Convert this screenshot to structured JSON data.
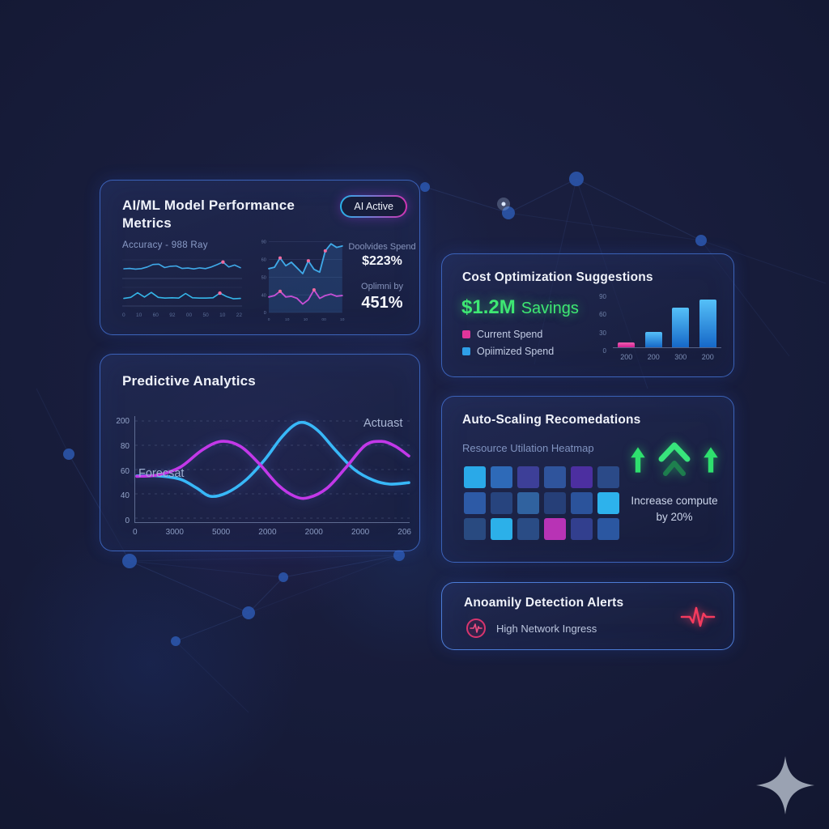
{
  "background": {
    "base_color": "#161b38",
    "node_color": "#2b55aa",
    "edge_color": "rgba(86,125,210,0.16)"
  },
  "cards": {
    "model_metrics": {
      "title": "AI/ML Model Performance Metrics",
      "badge": "AI Active",
      "chart_label": "Accuracy - 988 Ray",
      "stat1_label": "Doolvides Spend",
      "stat1_value": "$223%",
      "stat2_label": "Oplimni by",
      "stat2_value": "451%"
    },
    "predictive": {
      "title": "Predictive Analytics",
      "label_actual": "Actuast",
      "label_forecast": "Forecsat"
    },
    "cost": {
      "title": "Cost Optimization Suggestions",
      "savings_value": "$1.2M",
      "savings_word": "Savings",
      "accent_green": "#3ee873",
      "legend": [
        {
          "label": "Current Spend",
          "color": "#e0359b"
        },
        {
          "label": "Opiimized Spend",
          "color": "#2e9fe8"
        }
      ]
    },
    "autoscale": {
      "title": "Auto-Scaling Recomedations",
      "subtitle": "Resource Utilation Heatmap",
      "recommendation_line1": "Increase compute",
      "recommendation_line2": "by 20%",
      "arrow_color": "#2ee06e"
    },
    "anomaly": {
      "title": "Anoamily Detection Alerts",
      "alert_text": "High Network Ingress",
      "alert_color": "#f53b5e"
    }
  },
  "chart_data": [
    {
      "id": "accuracy_sparklines",
      "type": "line",
      "title": "Accuracy - 988 Ray",
      "marker_color": "#ef6aa0",
      "series": [
        {
          "name": "top-sparkline",
          "color": "#3fa9e8",
          "values": [
            50,
            52,
            48,
            51,
            60,
            74,
            76,
            57,
            64,
            66,
            52,
            54,
            49,
            55,
            51,
            60,
            73,
            88,
            60,
            71,
            56
          ],
          "marker_index": 17
        },
        {
          "name": "bottom-sparkline",
          "color": "#35b5e8",
          "values": [
            38,
            44,
            70,
            46,
            72,
            44,
            40,
            42,
            40,
            66,
            42,
            40,
            40,
            42,
            68,
            48,
            36,
            38
          ],
          "marker_index": 14
        }
      ],
      "xticks": [
        "0",
        "10",
        "60",
        "92",
        "00",
        "50",
        "10",
        "22"
      ]
    },
    {
      "id": "model_trend",
      "type": "line",
      "marker_color": "#ef6aa0",
      "yticks": [
        "90",
        "60",
        "50",
        "40",
        "0"
      ],
      "xticks": [
        "0",
        "10",
        "10",
        "00",
        "10"
      ],
      "series": [
        {
          "name": "blue-trend",
          "color": "#3fa9e8",
          "fill": "rgba(60,140,220,0.20)",
          "values": [
            62,
            64,
            77,
            66,
            71,
            63,
            55,
            73,
            61,
            57,
            87,
            97,
            92,
            94
          ],
          "markers": [
            2,
            7,
            10
          ]
        },
        {
          "name": "magenta-trend",
          "color": "#c44fd4",
          "values": [
            22,
            24,
            30,
            22,
            23,
            20,
            12,
            18,
            32,
            20,
            24,
            26,
            23,
            24
          ],
          "markers": [
            2,
            8
          ]
        }
      ]
    },
    {
      "id": "predictive_forecast",
      "type": "line",
      "title": "Predictive Analytics",
      "ylim": [
        0,
        200
      ],
      "yticks": [
        "200",
        "80",
        "60",
        "40",
        "0"
      ],
      "xticks": [
        "0",
        "3000",
        "5000",
        "2000",
        "2000",
        "2000",
        "206"
      ],
      "grid": "dashed-horizontal",
      "series": [
        {
          "name": "Actuast",
          "color": "#38b8f8",
          "x": [
            0,
            8,
            16,
            22,
            27,
            33,
            40,
            47,
            53,
            58,
            62,
            67,
            73,
            80,
            87,
            93,
            100
          ],
          "y": [
            87,
            87,
            80,
            62,
            45,
            52,
            78,
            120,
            165,
            192,
            196,
            178,
            140,
            100,
            78,
            70,
            73
          ]
        },
        {
          "name": "Forecsat",
          "color": "#c238e8",
          "x": [
            0,
            8,
            16,
            24,
            31,
            38,
            45,
            52,
            58,
            63,
            70,
            77,
            84,
            90,
            95,
            100
          ],
          "y": [
            86,
            89,
            105,
            140,
            158,
            148,
            112,
            68,
            45,
            42,
            62,
            105,
            150,
            158,
            148,
            128
          ]
        }
      ]
    },
    {
      "id": "cost_bars",
      "type": "bar",
      "categories": [
        "200",
        "200",
        "300",
        "200"
      ],
      "ylim": [
        0,
        95
      ],
      "yticks": [
        "90",
        "60",
        "30",
        "0"
      ],
      "bars": [
        {
          "value": 9,
          "top": "#ef5fb0",
          "bottom": "#d01f92"
        },
        {
          "value": 29,
          "top": "#55c0f8",
          "bottom": "#1668c8"
        },
        {
          "value": 75,
          "top": "#55c0f8",
          "bottom": "#1668c8"
        },
        {
          "value": 90,
          "top": "#55c0f8",
          "bottom": "#1668c8"
        }
      ]
    },
    {
      "id": "utilization_heatmap",
      "type": "heatmap",
      "rows": 3,
      "cols": 6,
      "colors": [
        [
          "#2aa9e8",
          "#2e6ab8",
          "#3d3f98",
          "#2f549c",
          "#4c2fa0",
          "#2b4a88"
        ],
        [
          "#2d5aa6",
          "#27447e",
          "#30629f",
          "#263f78",
          "#2b539b",
          "#2db2ec"
        ],
        [
          "#294a80",
          "#2cb0e9",
          "#2a4c85",
          "#b833b5",
          "#323f8e",
          "#2b57a1"
        ]
      ]
    }
  ]
}
